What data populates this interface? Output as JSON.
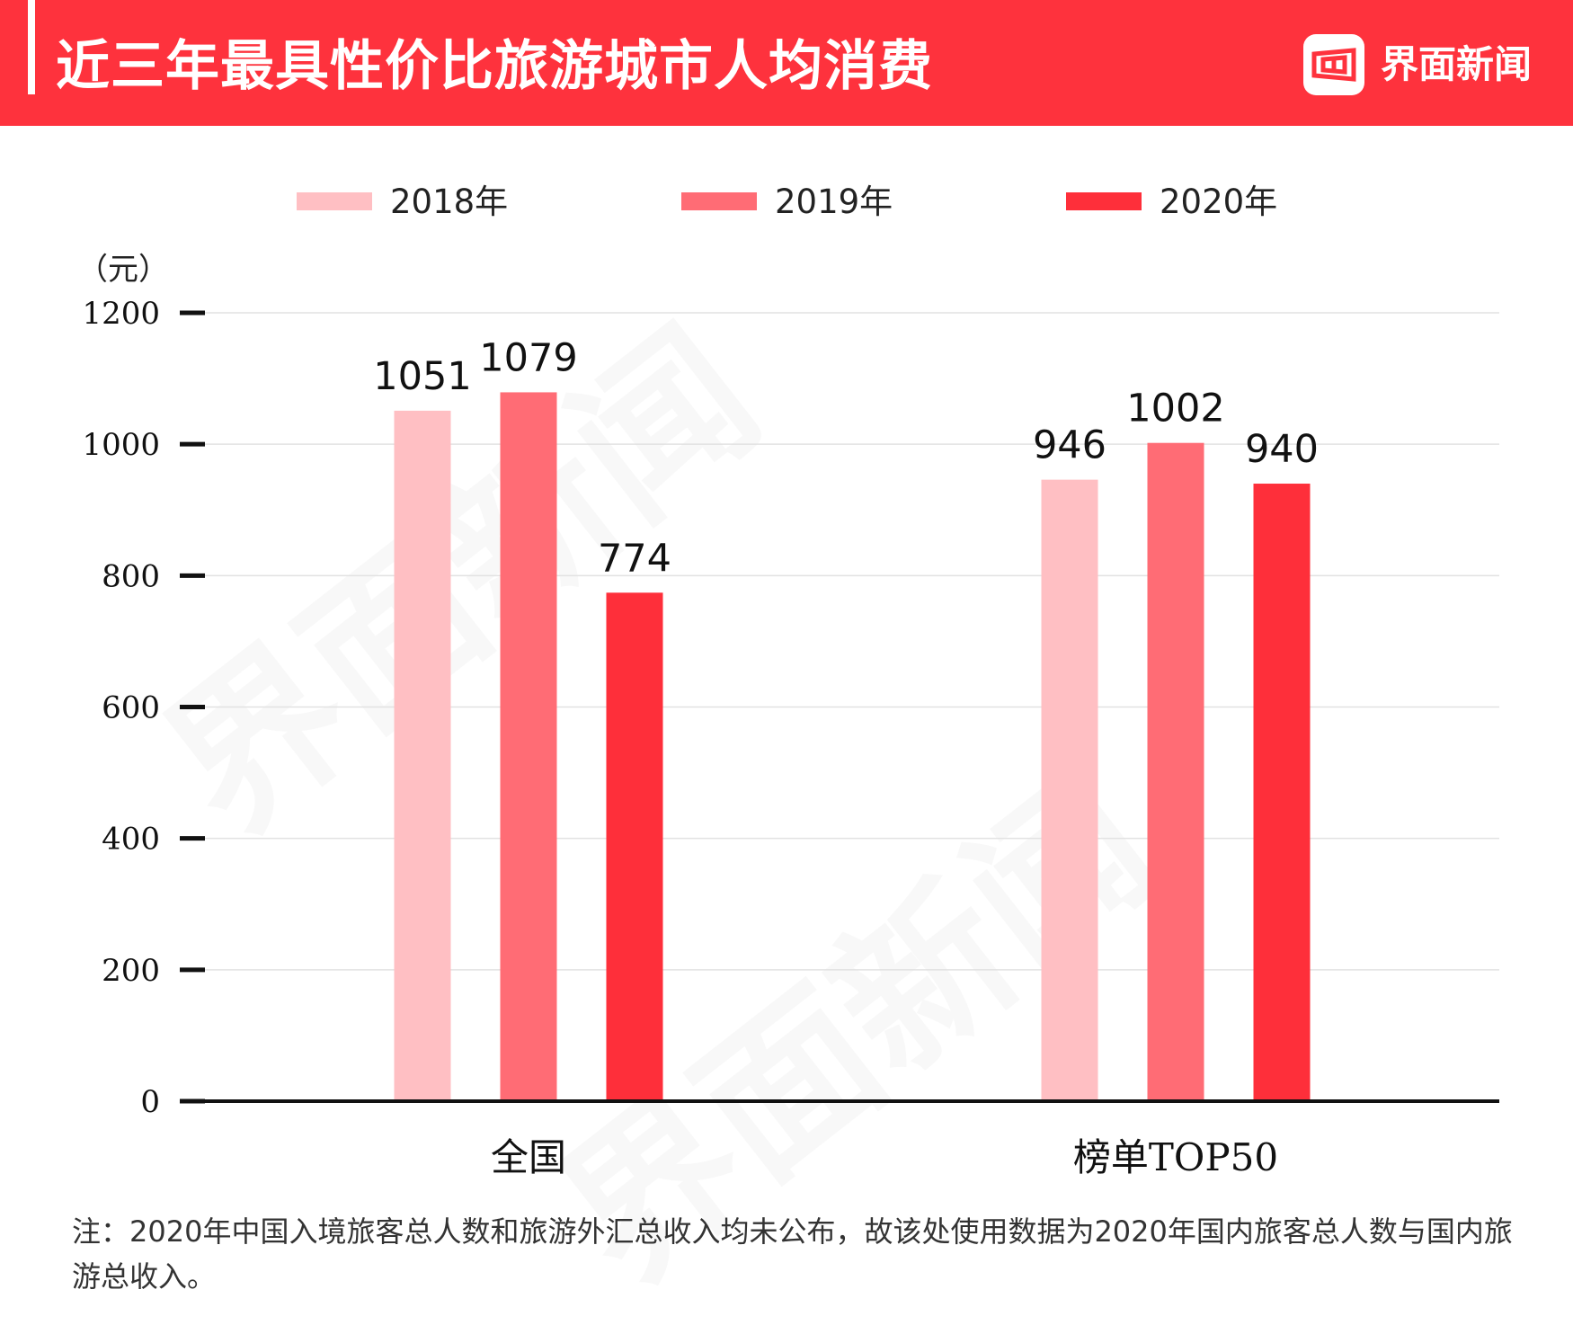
{
  "header": {
    "title": "近三年最具性价比旅游城市人均消费",
    "brand": "界面新闻",
    "background": "#fe323d",
    "logo_icon": "jiemian-logo-icon"
  },
  "watermark": {
    "text": "界面新闻"
  },
  "chart_data": {
    "type": "bar",
    "title": "近三年最具性价比旅游城市人均消费",
    "unit_label": "（元）",
    "categories": [
      "全国",
      "榜单TOP50"
    ],
    "series": [
      {
        "name": "2018年",
        "values": [
          1051,
          946
        ],
        "color": "#ffbfc3"
      },
      {
        "name": "2019年",
        "values": [
          1079,
          1002
        ],
        "color": "#ff6c75"
      },
      {
        "name": "2020年",
        "values": [
          774,
          940
        ],
        "color": "#fe2f3a"
      }
    ],
    "ylim": [
      0,
      1200
    ],
    "yticks": [
      0,
      200,
      400,
      600,
      800,
      1000,
      1200
    ],
    "grid": true,
    "legend_position": "top"
  },
  "note": "注：2020年中国入境旅客总人数和旅游外汇总收入均未公布，故该处使用数据为2020年国内旅客总人数与国内旅游总收入。"
}
